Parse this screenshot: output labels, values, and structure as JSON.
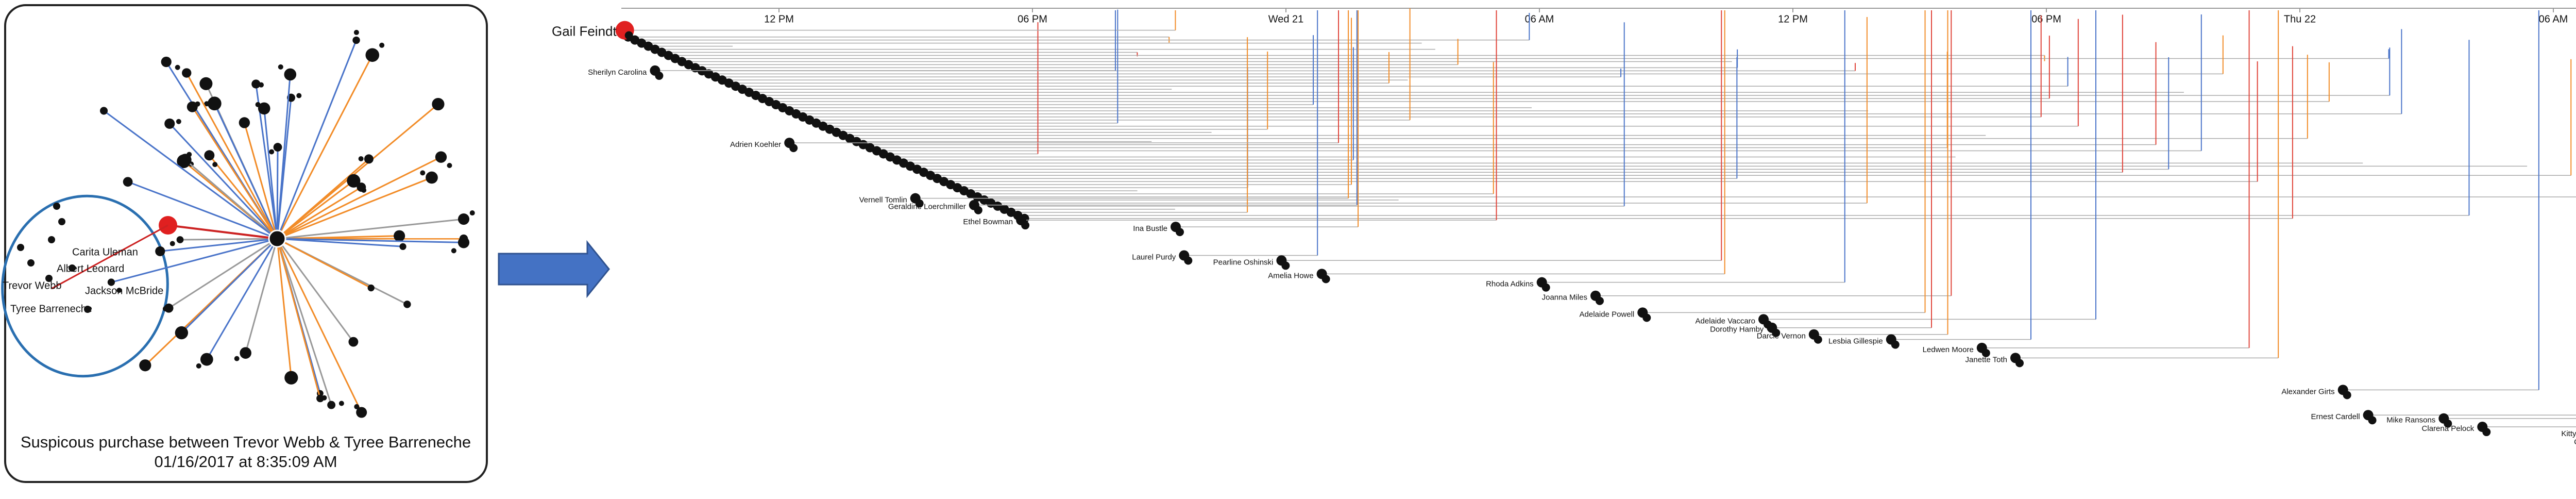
{
  "network_panel": {
    "labels": [
      "Carita Uleman",
      "Albert Leonard",
      "Trevor Webb",
      "Jackson McBride",
      "Tyree Barreneche"
    ],
    "caption": [
      "Suspicous purchase between Trevor Webb & Tyree Barreneche",
      "01/16/2017 at 8:35:09 AM"
    ]
  },
  "timeline": {
    "axis_labels": [
      "12 PM",
      "06 PM",
      "Wed 21",
      "06 AM",
      "12 PM",
      "06 PM",
      "Thu 22",
      "06 AM"
    ],
    "nodes": [
      "Gail Feindt",
      "Sherilyn Carolina",
      "Adrien Koehler",
      "Vernell Tomlin",
      "Geraldine Loerchmiller",
      "Ethel Bowman",
      "Ina Bustle",
      "Laurel Purdy",
      "Pearline Oshinski",
      "Amelia Howe",
      "Rhoda Adkins",
      "Joanna Miles",
      "Adelaide Powell",
      "Adelaide Vaccaro",
      "Dorothy Hamby",
      "Darcie Vernon",
      "Lesbia Gillespie",
      "Ledwen Moore",
      "Janette Toth",
      "Alexander Girts",
      "Ernest Cardell",
      "Mike Ransons",
      "Clarena Pelock",
      "Kitty Walhall",
      "Christy Pike"
    ]
  }
}
